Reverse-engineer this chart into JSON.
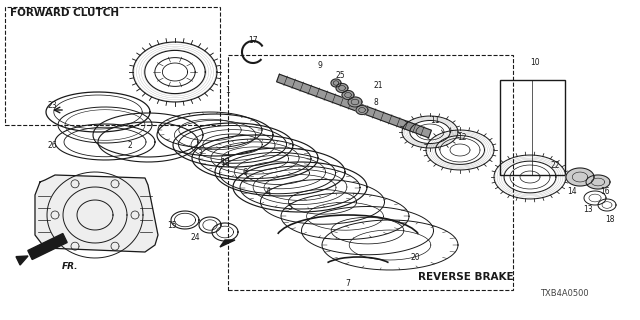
{
  "bg_color": "#ffffff",
  "label_forward_clutch": "FORWARD CLUTCH",
  "label_reverse_brake": "REVERSE BRAKE",
  "label_fr": "FR.",
  "diagram_code": "TXB4A0500",
  "black": "#1a1a1a",
  "gray": "#888888",
  "lightgray": "#cccccc"
}
